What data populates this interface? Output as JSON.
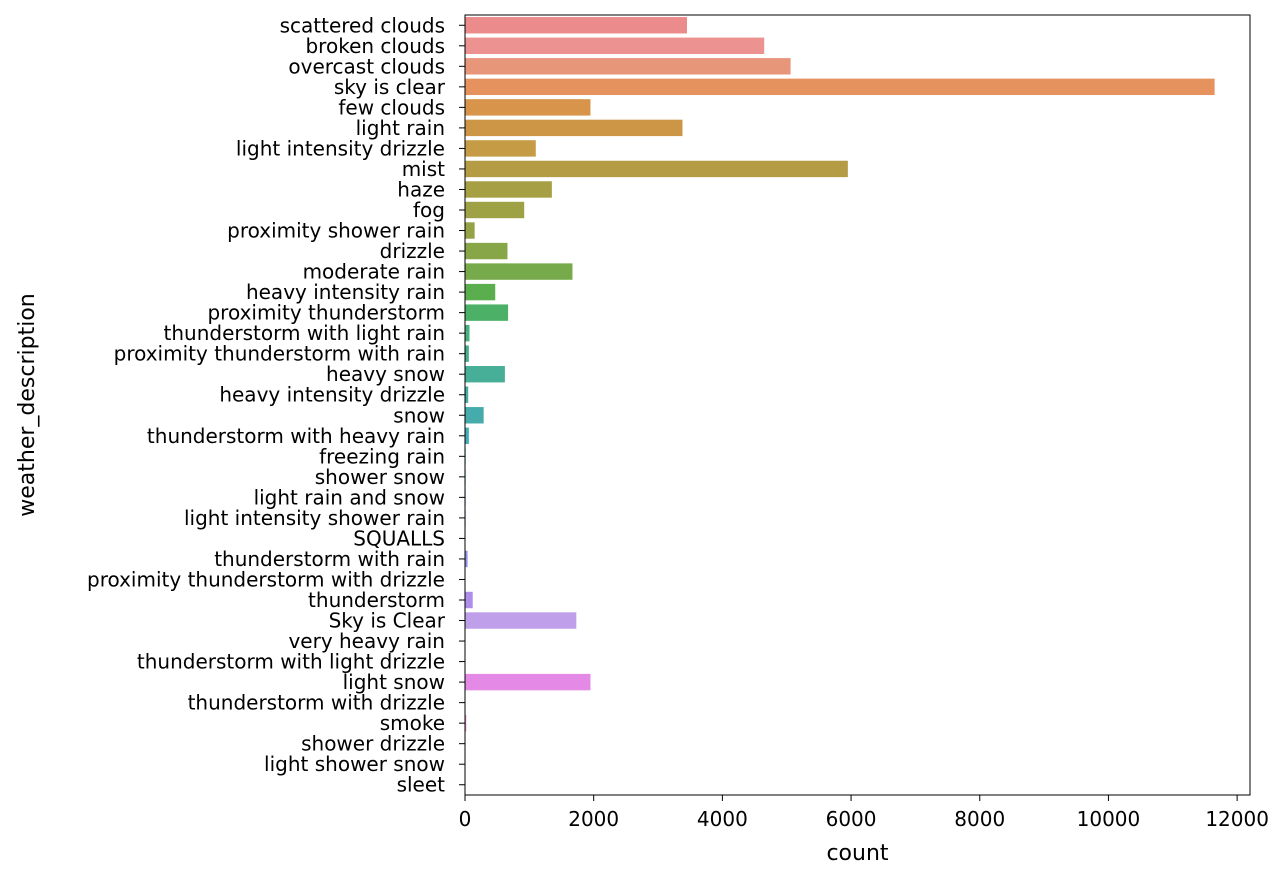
{
  "chart_data": {
    "type": "bar",
    "orientation": "horizontal",
    "xlabel": "count",
    "ylabel": "weather_description",
    "xlim": [
      0,
      12200
    ],
    "xticks": [
      0,
      2000,
      4000,
      6000,
      8000,
      10000,
      12000
    ],
    "grid": false,
    "categories": [
      "scattered clouds",
      "broken clouds",
      "overcast clouds",
      "sky is clear",
      "few clouds",
      "light rain",
      "light intensity drizzle",
      "mist",
      "haze",
      "fog",
      "proximity shower rain",
      "drizzle",
      "moderate rain",
      "heavy intensity rain",
      "proximity thunderstorm",
      "thunderstorm with light rain",
      "proximity thunderstorm with rain",
      "heavy snow",
      "heavy intensity drizzle",
      "snow",
      "thunderstorm with heavy rain",
      "freezing rain",
      "shower snow",
      "light rain and snow",
      "light intensity shower rain",
      "SQUALLS",
      "thunderstorm with rain",
      "proximity thunderstorm with drizzle",
      "thunderstorm",
      "Sky is Clear",
      "very heavy rain",
      "thunderstorm with light drizzle",
      "light snow",
      "thunderstorm with drizzle",
      "smoke",
      "shower drizzle",
      "light shower snow",
      "sleet"
    ],
    "values": [
      3450,
      4650,
      5060,
      11650,
      1950,
      3380,
      1100,
      5950,
      1350,
      920,
      150,
      660,
      1670,
      470,
      670,
      70,
      60,
      620,
      50,
      290,
      60,
      10,
      10,
      10,
      10,
      5,
      40,
      5,
      120,
      1730,
      5,
      5,
      1950,
      5,
      20,
      5,
      5,
      5
    ],
    "colors": [
      "#ec8b8b",
      "#ec9290",
      "#e8967a",
      "#e6925e",
      "#d8944a",
      "#cd9646",
      "#c59c45",
      "#b39c44",
      "#a79f44",
      "#9fa145",
      "#95a346",
      "#86a648",
      "#76aa4a",
      "#5aae4e",
      "#4cb167",
      "#49b07e",
      "#47af8c",
      "#47ae97",
      "#46ada1",
      "#45acab",
      "#44abb7",
      "#45a9c4",
      "#49a7d2",
      "#559fdf",
      "#6e9ae3",
      "#8496e5",
      "#9292e8",
      "#a08ee9",
      "#b08deb",
      "#bf9fe9",
      "#cc8deb",
      "#d98bea",
      "#e589e6",
      "#e78bd8",
      "#e78cc8",
      "#e88cbb",
      "#e98daf",
      "#ea8ea0"
    ]
  }
}
